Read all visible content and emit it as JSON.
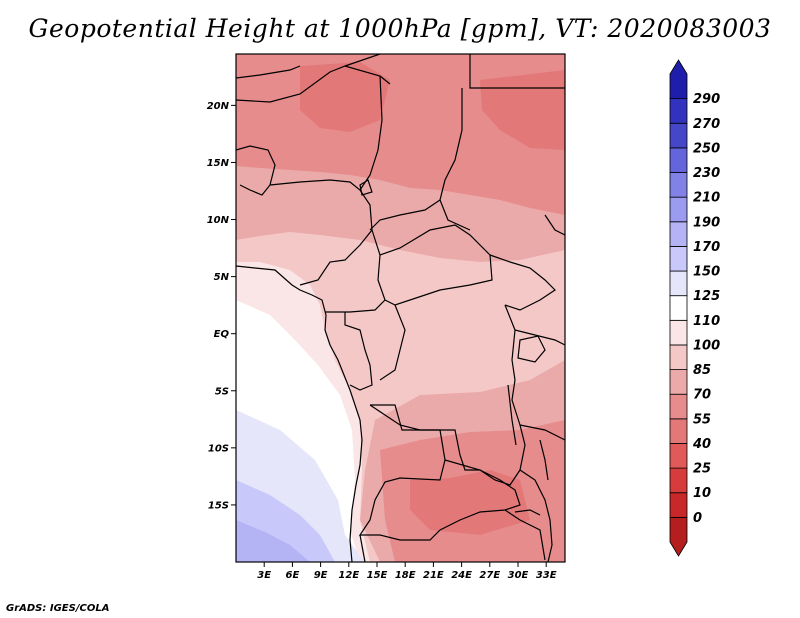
{
  "title": "Geopotential Height at 1000hPa [gpm], VT: 2020083003",
  "credit": "GrADS: IGES/COLA",
  "map": {
    "lon_range": [
      0,
      35
    ],
    "lat_range": [
      -20,
      24.5
    ],
    "lat_ticks": [
      {
        "value": 20,
        "label": "20N"
      },
      {
        "value": 15,
        "label": "15N"
      },
      {
        "value": 10,
        "label": "10N"
      },
      {
        "value": 5,
        "label": "5N"
      },
      {
        "value": 0,
        "label": "EQ"
      },
      {
        "value": -5,
        "label": "5S"
      },
      {
        "value": -10,
        "label": "10S"
      },
      {
        "value": -15,
        "label": "15S"
      }
    ],
    "lon_ticks": [
      {
        "value": 3,
        "label": "3E"
      },
      {
        "value": 6,
        "label": "6E"
      },
      {
        "value": 9,
        "label": "9E"
      },
      {
        "value": 12,
        "label": "12E"
      },
      {
        "value": 15,
        "label": "15E"
      },
      {
        "value": 18,
        "label": "18E"
      },
      {
        "value": 21,
        "label": "21E"
      },
      {
        "value": 24,
        "label": "24E"
      },
      {
        "value": 27,
        "label": "27E"
      },
      {
        "value": 30,
        "label": "30E"
      },
      {
        "value": 33,
        "label": "33E"
      }
    ]
  },
  "colorbar": {
    "levels": [
      "0",
      "10",
      "25",
      "40",
      "55",
      "70",
      "85",
      "100",
      "110",
      "125",
      "150",
      "170",
      "190",
      "210",
      "230",
      "250",
      "270",
      "290"
    ],
    "colors": [
      "#b41e1e",
      "#c82828",
      "#d73c3c",
      "#e05a5a",
      "#e37878",
      "#e68c8c",
      "#ebaaaa",
      "#f5c8c8",
      "#fae6e6",
      "#ffffff",
      "#e6e6fa",
      "#c8c8fa",
      "#b4b4f5",
      "#9b9bf0",
      "#8282e6",
      "#6464dc",
      "#4646c8",
      "#3232be",
      "#1e1eaa"
    ]
  }
}
